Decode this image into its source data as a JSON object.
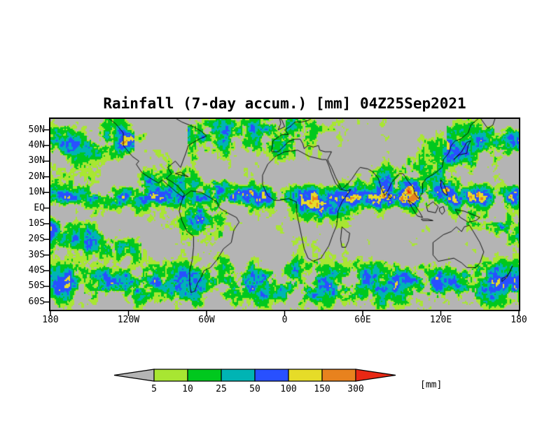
{
  "title": "Rainfall (7-day accum.) [mm] 04Z25Sep2021",
  "map": {
    "lat_ticks": [
      "50N",
      "40N",
      "30N",
      "20N",
      "10N",
      "EQ",
      "10S",
      "20S",
      "30S",
      "40S",
      "50S",
      "60S"
    ],
    "lon_ticks": [
      "180",
      "120W",
      "60W",
      "0",
      "60E",
      "120E",
      "180"
    ],
    "background_color": "#b4b4b4",
    "coastline_color": "#000000"
  },
  "legend": {
    "levels": [
      "5",
      "10",
      "25",
      "50",
      "100",
      "150",
      "300"
    ],
    "unit_label": "[mm]",
    "below_min_color": "#b4b4b4",
    "colors": [
      "#a8e632",
      "#00c81e",
      "#00b4b4",
      "#2850ff",
      "#e6dc28",
      "#e8821e",
      "#e82814"
    ]
  },
  "chart_data": {
    "type": "heatmap",
    "title": "Rainfall (7-day accum.) [mm] 04Z25Sep2021",
    "variable": "Rainfall (7-day accumulation)",
    "units": "mm",
    "valid_time_label": "04Z25Sep2021",
    "projection": "global equirectangular map",
    "x_ticks": [
      "180",
      "120W",
      "60W",
      "0",
      "60E",
      "120E",
      "180"
    ],
    "y_ticks": [
      "50N",
      "40N",
      "30N",
      "20N",
      "10N",
      "EQ",
      "10S",
      "20S",
      "30S",
      "40S",
      "50S",
      "60S"
    ],
    "color_levels_mm": [
      5,
      10,
      25,
      50,
      100,
      150,
      300
    ],
    "color_scale": [
      {
        "range": "< 5",
        "color": "#b4b4b4"
      },
      {
        "range": "5-10",
        "color": "#a8e632"
      },
      {
        "range": "10-25",
        "color": "#00c81e"
      },
      {
        "range": "25-50",
        "color": "#00b4b4"
      },
      {
        "range": "50-100",
        "color": "#2850ff"
      },
      {
        "range": "100-150",
        "color": "#e6dc28"
      },
      {
        "range": "150-300",
        "color": "#e8821e"
      },
      {
        "range": "> 300",
        "color": "#e82814"
      }
    ],
    "legend_position": "bottom",
    "grid": false
  }
}
